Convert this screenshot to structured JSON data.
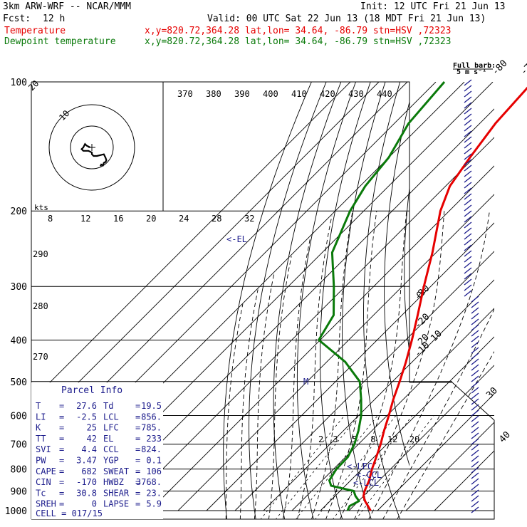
{
  "header": {
    "model": "3km ARW-WRF -- NCAR/MMM",
    "init": "Init: 12 UTC Fri 21 Jun 13",
    "fcst_label": "Fcst:",
    "fcst_value": "12 h",
    "valid": "Valid: 00 UTC Sat 22 Jun 13 (18 MDT Fri 21 Jun 13)",
    "temp_label": "Temperature",
    "dew_label": "Dewpoint temperature",
    "location": "x,y=820.72,364.28   lat,lon= 34.64, -86.79   stn=HSV ,72323",
    "full_barb_top": "Full barb:",
    "full_barb_bottom": "5 m s⁻¹"
  },
  "colors": {
    "temperature": "#e60000",
    "dewpoint": "#0a7a0a",
    "annotation": "#1c1c8c",
    "grid": "#000000"
  },
  "chart_data": {
    "type": "line",
    "title": "Skew-T log-P sounding",
    "pressure_levels": [
      100,
      200,
      300,
      400,
      500,
      600,
      700,
      800,
      900,
      1000
    ],
    "isotherms_labels": [
      "-80",
      "-70",
      "-60",
      "-50",
      "-40",
      "-30",
      "-20",
      "-10",
      "0",
      "10",
      "20",
      "30",
      "40"
    ],
    "theta_labels_top": [
      "370",
      "380",
      "390",
      "400",
      "410",
      "420",
      "430",
      "440"
    ],
    "theta_labels_side": [
      "290",
      "280",
      "270"
    ],
    "mixing_ratio_labels": [
      "2",
      "3",
      "5",
      "8",
      "12",
      "20"
    ],
    "series": [
      {
        "name": "Temperature",
        "points": [
          {
            "p": 1000,
            "t": 27.6
          },
          {
            "p": 975,
            "t": 25.0
          },
          {
            "p": 950,
            "t": 22.3
          },
          {
            "p": 925,
            "t": 20.0
          },
          {
            "p": 900,
            "t": 18.6
          },
          {
            "p": 850,
            "t": 16.5
          },
          {
            "p": 800,
            "t": 13.5
          },
          {
            "p": 750,
            "t": 10.8
          },
          {
            "p": 700,
            "t": 7.8
          },
          {
            "p": 650,
            "t": 4.2
          },
          {
            "p": 600,
            "t": 0.6
          },
          {
            "p": 550,
            "t": -3.5
          },
          {
            "p": 500,
            "t": -7.5
          },
          {
            "p": 450,
            "t": -12.2
          },
          {
            "p": 400,
            "t": -17.8
          },
          {
            "p": 350,
            "t": -24.5
          },
          {
            "p": 300,
            "t": -32.4
          },
          {
            "p": 250,
            "t": -41.3
          },
          {
            "p": 200,
            "t": -53.1
          },
          {
            "p": 175,
            "t": -58.5
          },
          {
            "p": 150,
            "t": -61.5
          },
          {
            "p": 125,
            "t": -64.5
          },
          {
            "p": 100,
            "t": -66.0
          }
        ]
      },
      {
        "name": "Dewpoint temperature",
        "points": [
          {
            "p": 1000,
            "t": 19.5
          },
          {
            "p": 975,
            "t": 18.6
          },
          {
            "p": 950,
            "t": 20.2
          },
          {
            "p": 925,
            "t": 17.2
          },
          {
            "p": 900,
            "t": 14.8
          },
          {
            "p": 875,
            "t": 5.0
          },
          {
            "p": 850,
            "t": 2.5
          },
          {
            "p": 800,
            "t": 1.0
          },
          {
            "p": 750,
            "t": 0.8
          },
          {
            "p": 700,
            "t": -1.4
          },
          {
            "p": 650,
            "t": -4.8
          },
          {
            "p": 600,
            "t": -9.1
          },
          {
            "p": 550,
            "t": -14.8
          },
          {
            "p": 500,
            "t": -21.5
          },
          {
            "p": 450,
            "t": -33.5
          },
          {
            "p": 400,
            "t": -50.5
          },
          {
            "p": 350,
            "t": -54.0
          },
          {
            "p": 300,
            "t": -64.0
          },
          {
            "p": 250,
            "t": -76.5
          },
          {
            "p": 200,
            "t": -84.8
          },
          {
            "p": 175,
            "t": -88.2
          },
          {
            "p": 150,
            "t": -90.0
          },
          {
            "p": 125,
            "t": -95.0
          },
          {
            "p": 100,
            "t": -97.0
          }
        ]
      }
    ],
    "annotations": [
      {
        "label": "<-EL",
        "p": 233
      },
      {
        "label": "M",
        "p": 500
      },
      {
        "label": "<-LFC",
        "p": 785
      },
      {
        "label": "<-CCL",
        "p": 824
      },
      {
        "label": "<-LCL",
        "p": 856
      }
    ],
    "hodograph": {
      "speed_ring_labels": [
        "20",
        "10"
      ],
      "axis_label": "kts",
      "axis_tick_labels": [
        "8",
        "12",
        "16",
        "20",
        "24",
        "28",
        "32"
      ],
      "path": [
        [
          5,
          -11
        ],
        [
          5.5,
          -10
        ],
        [
          6.5,
          -10.5
        ],
        [
          7,
          -9
        ],
        [
          8,
          -8.5
        ],
        [
          8.5,
          -7.5
        ],
        [
          8,
          -6
        ],
        [
          7,
          -4
        ],
        [
          5,
          -4.5
        ],
        [
          3,
          -5
        ],
        [
          1,
          -5
        ],
        [
          0,
          -4
        ],
        [
          0,
          -3
        ],
        [
          -2,
          -2
        ],
        [
          -4,
          -2
        ],
        [
          -5,
          -2
        ],
        [
          -6,
          -1
        ],
        [
          -5,
          0
        ],
        [
          -4,
          2
        ],
        [
          -3,
          1
        ],
        [
          -1,
          0
        ]
      ]
    }
  },
  "parcel_info": {
    "title": "Parcel Info",
    "rows": [
      {
        "l1": "T",
        "v1": "27.6",
        "l2": "Td",
        "v2": "19.5"
      },
      {
        "l1": "LI",
        "v1": "-2.5",
        "l2": "LCL",
        "v2": "856."
      },
      {
        "l1": "K",
        "v1": "25",
        "l2": "LFC",
        "v2": "785."
      },
      {
        "l1": "TT",
        "v1": "42",
        "l2": "EL",
        "v2": "233"
      },
      {
        "l1": "SVI",
        "v1": "4.4",
        "l2": "CCL",
        "v2": "824."
      },
      {
        "l1": "PW",
        "v1": "3.47",
        "l2": "YGP",
        "v2": "0.1"
      },
      {
        "l1": "CAPE",
        "v1": "682",
        "l2": "SWEAT",
        "v2": "106"
      },
      {
        "l1": "CIN",
        "v1": "-170",
        "l2": "HWBZ",
        "v2": "3768."
      },
      {
        "l1": "Tc",
        "v1": "30.8",
        "l2": "SHEAR",
        "v2": "23."
      },
      {
        "l1": "SREH",
        "v1": "0",
        "l2": "LAPSE",
        "v2": "5.9"
      }
    ],
    "cell": "CELL = 017/15"
  }
}
